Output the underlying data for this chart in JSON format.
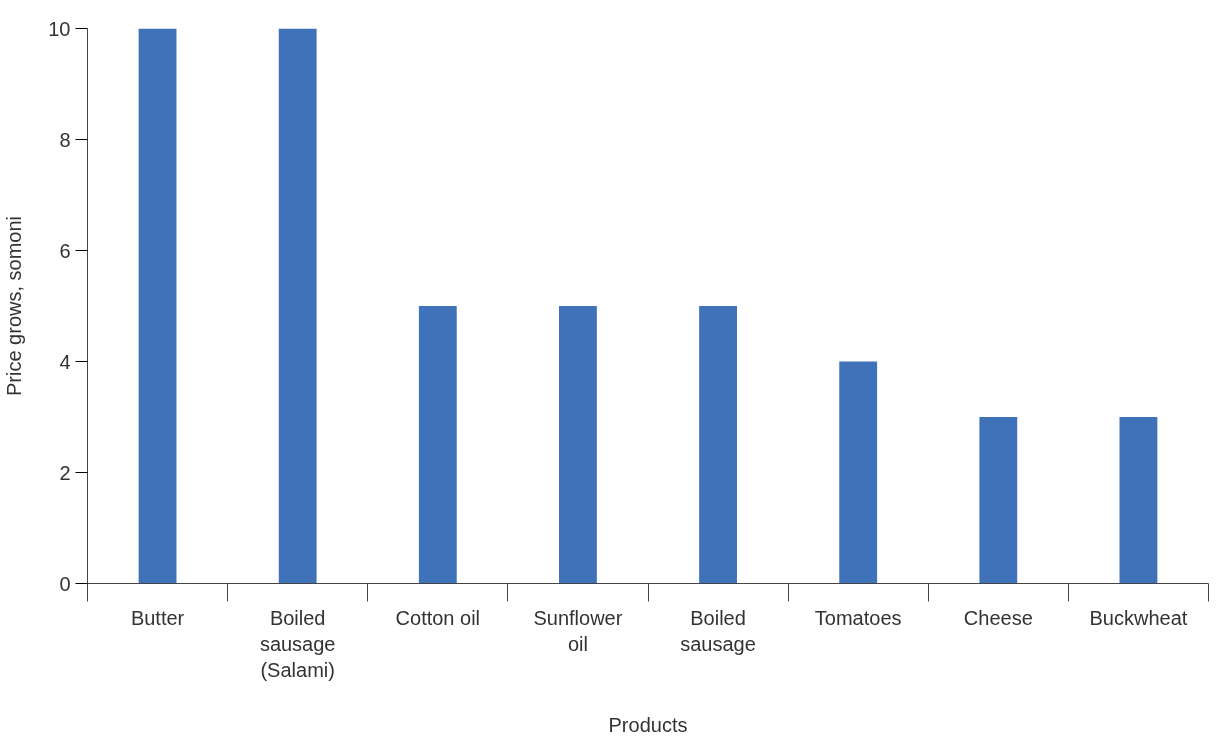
{
  "chart_data": {
    "type": "bar",
    "xlabel": "Products",
    "ylabel": "Price grows, somoni",
    "categories": [
      "Butter",
      "Boiled sausage (Salami)",
      "Cotton oil",
      "Sunflower oil",
      "Boiled sausage",
      "Tomatoes",
      "Cheese",
      "Buckwheat"
    ],
    "values": [
      10,
      10,
      5,
      5,
      5,
      4,
      3,
      3
    ],
    "color": "#3f72b8",
    "ylim": [
      0,
      10
    ],
    "yticks": [
      0,
      2,
      4,
      6,
      8,
      10
    ],
    "grid": false
  }
}
